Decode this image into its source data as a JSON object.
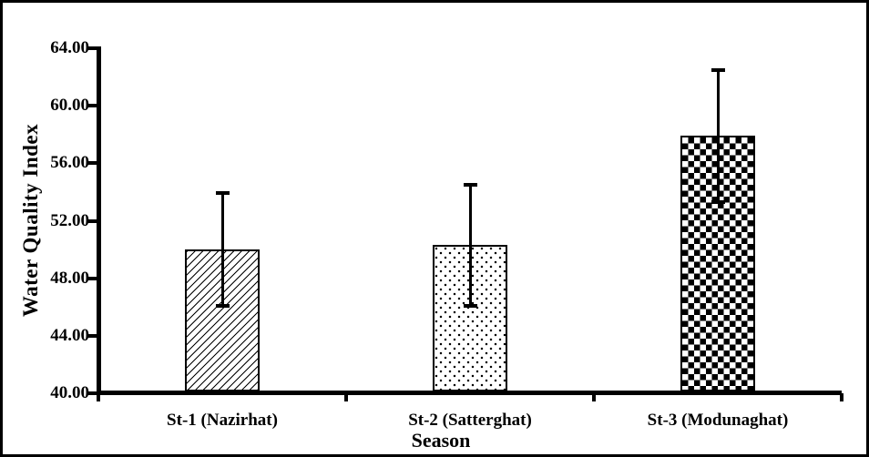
{
  "frame": {
    "background_color": "#ffffff",
    "border_color": "#000000",
    "ink_color": "#000000"
  },
  "chart_data": {
    "type": "bar",
    "title": "",
    "xlabel": "Season",
    "ylabel": "Water Quality Index",
    "categories": [
      "St-1 (Nazirhat)",
      "St-2 (Satterghat)",
      "St-3 (Modunaghat)"
    ],
    "values": [
      50.0,
      50.3,
      57.9
    ],
    "error_bars": [
      3.9,
      4.2,
      4.6
    ],
    "bar_patterns": [
      "diagonal-hatch",
      "dots",
      "checkerboard"
    ],
    "bar_fill_color": "#ffffff",
    "bar_border_color": "#000000",
    "ylim": [
      40,
      64
    ],
    "yticks": [
      64,
      60,
      56,
      52,
      48,
      44,
      40
    ],
    "ytick_labels": [
      "64.00",
      "60.00",
      "56.00",
      "52.00",
      "48.00",
      "44.00",
      "40.00"
    ],
    "grid": false,
    "legend": false,
    "error_bar_caps": true
  }
}
